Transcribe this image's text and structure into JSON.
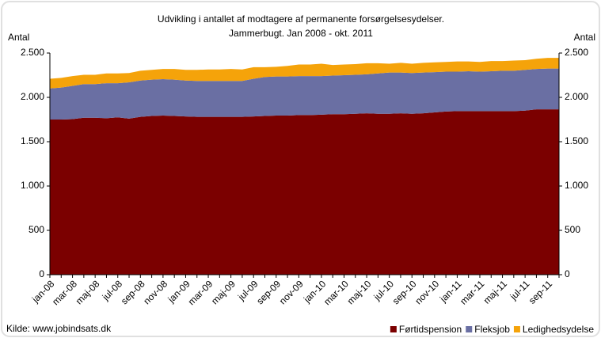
{
  "chart_data": {
    "type": "stacked_area",
    "title": "Udvikling i antallet af modtagere af permanente forsørgelsesydelser.",
    "subtitle": "Jammerbugt. Jan 2008 - okt. 2011",
    "y_label": "Antal",
    "y2_label": "Antal",
    "source": "Kilde: www.jobindsats.dk",
    "categories": [
      "jan-08",
      null,
      "mar-08",
      null,
      "maj-08",
      null,
      "jul-08",
      null,
      "sep-08",
      null,
      "nov-08",
      null,
      "jan-09",
      null,
      "mar-09",
      null,
      "maj-09",
      null,
      "jul-09",
      null,
      "sep-09",
      null,
      "nov-09",
      null,
      "jan-10",
      null,
      "mar-10",
      null,
      "maj-10",
      null,
      "jul-10",
      null,
      "sep-10",
      null,
      "nov-10",
      null,
      "jan-11",
      null,
      "mar-11",
      null,
      "maj-11",
      null,
      "jul-11",
      null,
      "sep-11",
      null
    ],
    "series": [
      {
        "name": "Førtidspension",
        "color": "#7b0000",
        "values": [
          1750,
          1750,
          1755,
          1770,
          1770,
          1765,
          1775,
          1760,
          1780,
          1790,
          1795,
          1790,
          1785,
          1780,
          1780,
          1780,
          1780,
          1780,
          1785,
          1790,
          1795,
          1795,
          1800,
          1800,
          1805,
          1810,
          1810,
          1815,
          1820,
          1815,
          1815,
          1820,
          1815,
          1820,
          1830,
          1840,
          1845,
          1845,
          1845,
          1845,
          1845,
          1845,
          1850,
          1865,
          1865,
          1865
        ]
      },
      {
        "name": "Fleksjob",
        "color": "#6a6fa3",
        "values": [
          350,
          360,
          375,
          380,
          380,
          395,
          385,
          410,
          410,
          410,
          410,
          410,
          405,
          405,
          405,
          405,
          405,
          405,
          425,
          440,
          440,
          440,
          440,
          440,
          435,
          435,
          440,
          440,
          440,
          455,
          465,
          460,
          460,
          460,
          455,
          450,
          445,
          450,
          445,
          450,
          455,
          455,
          460,
          455,
          460,
          460
        ]
      },
      {
        "name": "Ledighedsydelse",
        "color": "#f5a30a",
        "values": [
          110,
          110,
          110,
          105,
          105,
          110,
          110,
          105,
          110,
          110,
          115,
          120,
          120,
          125,
          130,
          130,
          135,
          130,
          130,
          110,
          110,
          120,
          130,
          130,
          140,
          120,
          120,
          120,
          125,
          115,
          100,
          110,
          105,
          110,
          110,
          110,
          115,
          110,
          110,
          115,
          110,
          115,
          110,
          115,
          120,
          120
        ]
      }
    ],
    "ylim": [
      0,
      2500
    ],
    "yticks": [
      0,
      {
        "value": 500,
        "label": "500"
      },
      {
        "value": 1000,
        "label": "1.000"
      },
      {
        "value": 1500,
        "label": "1.500"
      },
      {
        "value": 2000,
        "label": "2.000"
      },
      {
        "value": 2500,
        "label": "2.500"
      }
    ],
    "y2lim": [
      0,
      2500
    ],
    "y2ticks": [
      0,
      {
        "value": 500,
        "label": "500"
      },
      {
        "value": 1000,
        "label": "1.000"
      },
      {
        "value": 1500,
        "label": "1.500"
      },
      {
        "value": 2000,
        "label": "2.000"
      },
      {
        "value": 2500,
        "label": "2.500"
      }
    ],
    "legend": "bottom-right"
  }
}
